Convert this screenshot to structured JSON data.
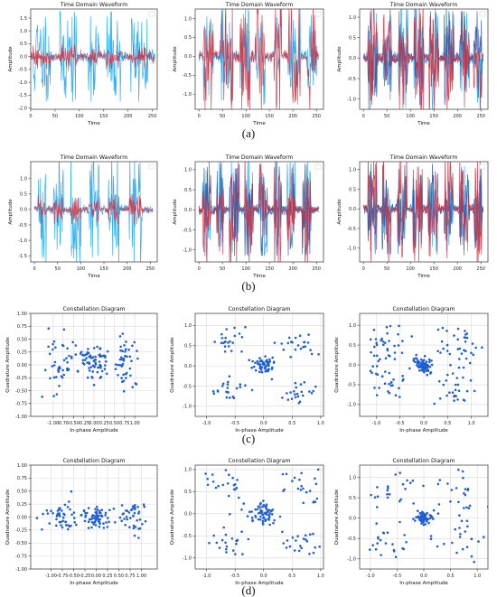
{
  "panel_labels": [
    "(a)",
    "(b)",
    "(c)",
    "(d)"
  ],
  "colors": {
    "light_blue": "#1ea7f0",
    "dark_blue": "#3355a0",
    "red": "#cc3344",
    "scatter": "#1f5fd6",
    "grid": "#d8d8d8"
  },
  "chart_data": [
    {
      "type": "line",
      "title": "Time Domain Waveform",
      "xlabel": "Time",
      "ylabel": "Amplitude",
      "xlim": [
        0,
        260
      ],
      "ylim": [
        -2.05,
        1.85
      ],
      "xticks": [
        0,
        50,
        100,
        150,
        200,
        250
      ],
      "yticks": [
        -2.0,
        -1.5,
        -1.0,
        -0.5,
        0.0,
        0.5,
        1.0,
        1.5
      ],
      "ytick_labels": [
        "-2.0",
        "-1.5",
        "-1.0",
        "-0.5",
        "0.0",
        "0.5",
        "1.0",
        "1.5"
      ],
      "bursts": [
        [
          5,
          40
        ],
        [
          60,
          95
        ],
        [
          118,
          140
        ],
        [
          155,
          185
        ],
        [
          205,
          240
        ]
      ],
      "series": [
        {
          "color_key": "light_blue",
          "n": 256,
          "low": 0.18,
          "high": 1.3,
          "seed": 11
        },
        {
          "color_key": "red",
          "n": 256,
          "low": 0.12,
          "high": 0.35,
          "seed": 12
        }
      ]
    },
    {
      "type": "line",
      "title": "Time Domain Waveform",
      "xlabel": "Time",
      "ylabel": "Amplitude",
      "xlim": [
        -8,
        265
      ],
      "ylim": [
        -1.4,
        1.25
      ],
      "xticks": [
        0,
        50,
        100,
        150,
        200,
        250
      ],
      "yticks": [
        -1.0,
        -0.5,
        0.0,
        0.5,
        1.0
      ],
      "ytick_labels": [
        "-1.0",
        "-0.5",
        "0.0",
        "0.5",
        "1.0"
      ],
      "bursts": [
        [
          10,
          30
        ],
        [
          45,
          72
        ],
        [
          88,
          108
        ],
        [
          120,
          140
        ],
        [
          160,
          175
        ],
        [
          190,
          215
        ],
        [
          230,
          250
        ]
      ],
      "series": [
        {
          "color_key": "light_blue",
          "n": 256,
          "low": 0.1,
          "high": 0.95,
          "seed": 21
        },
        {
          "color_key": "red",
          "n": 256,
          "low": 0.1,
          "high": 1.05,
          "seed": 22
        }
      ]
    },
    {
      "type": "line",
      "title": "Time Domain Waveform",
      "xlabel": "Time",
      "ylabel": "Amplitude",
      "xlim": [
        -8,
        265
      ],
      "ylim": [
        -1.25,
        1.2
      ],
      "xticks": [
        0,
        50,
        100,
        150,
        200,
        250
      ],
      "yticks": [
        -1.0,
        -0.5,
        0.0,
        0.5,
        1.0
      ],
      "ytick_labels": [
        "-1.0",
        "-0.5",
        "0.0",
        "0.5",
        "1.0"
      ],
      "bursts": [
        [
          10,
          30
        ],
        [
          42,
          60
        ],
        [
          75,
          95
        ],
        [
          108,
          128
        ],
        [
          140,
          160
        ],
        [
          172,
          192
        ],
        [
          205,
          225
        ],
        [
          235,
          252
        ]
      ],
      "series": [
        {
          "color_key": "light_blue",
          "n": 256,
          "low": 0.1,
          "high": 1.0,
          "seed": 31
        },
        {
          "color_key": "dark_blue",
          "n": 256,
          "low": 0.08,
          "high": 0.85,
          "seed": 32
        },
        {
          "color_key": "red",
          "n": 256,
          "low": 0.08,
          "high": 0.95,
          "seed": 33
        }
      ]
    },
    {
      "type": "line",
      "title": "Time Domain Waveform",
      "xlabel": "Time",
      "ylabel": "Amplitude",
      "xlim": [
        -8,
        265
      ],
      "ylim": [
        -1.7,
        1.55
      ],
      "xticks": [
        0,
        50,
        100,
        150,
        200,
        250
      ],
      "yticks": [
        -1.5,
        -1.0,
        -0.5,
        0.0,
        0.5,
        1.0
      ],
      "ytick_labels": [
        "-1.5",
        "-1.0",
        "-0.5",
        "0.0",
        "0.5",
        "1.0"
      ],
      "bursts": [
        [
          8,
          25
        ],
        [
          40,
          62
        ],
        [
          78,
          100
        ],
        [
          118,
          140
        ],
        [
          160,
          182
        ],
        [
          205,
          232
        ]
      ],
      "series": [
        {
          "color_key": "light_blue",
          "n": 256,
          "low": 0.1,
          "high": 1.35,
          "seed": 41
        },
        {
          "color_key": "red",
          "n": 256,
          "low": 0.08,
          "high": 0.35,
          "seed": 42
        }
      ]
    },
    {
      "type": "line",
      "title": "Time Domain Waveform",
      "xlabel": "Time",
      "ylabel": "Amplitude",
      "xlim": [
        -8,
        265
      ],
      "ylim": [
        -1.3,
        1.2
      ],
      "xticks": [
        0,
        50,
        100,
        150,
        200,
        250
      ],
      "yticks": [
        -1.0,
        -0.5,
        0.0,
        0.5,
        1.0
      ],
      "ytick_labels": [
        "-1.0",
        "-0.5",
        "0.0",
        "0.5",
        "1.0"
      ],
      "bursts": [
        [
          8,
          25
        ],
        [
          38,
          52
        ],
        [
          65,
          85
        ],
        [
          98,
          115
        ],
        [
          128,
          145
        ],
        [
          160,
          175
        ],
        [
          188,
          205
        ],
        [
          220,
          238
        ]
      ],
      "series": [
        {
          "color_key": "light_blue",
          "n": 256,
          "low": 0.1,
          "high": 0.95,
          "seed": 51
        },
        {
          "color_key": "dark_blue",
          "n": 256,
          "low": 0.08,
          "high": 0.85,
          "seed": 52
        },
        {
          "color_key": "red",
          "n": 256,
          "low": 0.08,
          "high": 1.05,
          "seed": 53
        }
      ]
    },
    {
      "type": "line",
      "title": "Time Domain Waveform",
      "xlabel": "Time",
      "ylabel": "Amplitude",
      "xlim": [
        -8,
        265
      ],
      "ylim": [
        -1.35,
        1.2
      ],
      "xticks": [
        0,
        50,
        100,
        150,
        200,
        250
      ],
      "yticks": [
        -1.0,
        -0.5,
        0.0,
        0.5,
        1.0
      ],
      "ytick_labels": [
        "-1.0",
        "-0.5",
        "0.0",
        "0.5",
        "1.0"
      ],
      "bursts": [
        [
          10,
          28
        ],
        [
          40,
          58
        ],
        [
          72,
          92
        ],
        [
          105,
          125
        ],
        [
          138,
          158
        ],
        [
          172,
          190
        ],
        [
          205,
          225
        ],
        [
          235,
          252
        ]
      ],
      "series": [
        {
          "color_key": "light_blue",
          "n": 256,
          "low": 0.08,
          "high": 0.8,
          "seed": 61
        },
        {
          "color_key": "dark_blue",
          "n": 256,
          "low": 0.08,
          "high": 0.85,
          "seed": 62
        },
        {
          "color_key": "red",
          "n": 256,
          "low": 0.08,
          "high": 1.05,
          "seed": 63
        }
      ]
    },
    {
      "type": "scatter",
      "title": "Constellation Diagram",
      "xlabel": "In-phase Amplitude",
      "ylabel": "Quadrature Amplitude",
      "xlim": [
        -1.55,
        1.55
      ],
      "ylim": [
        -1.0,
        1.0
      ],
      "xticks": [
        -1.0,
        -0.76,
        -0.5,
        -0.25,
        0.0,
        0.25,
        0.5,
        0.75,
        1.0
      ],
      "xtick_labels": [
        "-1.00",
        "-0.76",
        "-0.50",
        "-0.25",
        "0.00",
        "0.25",
        "0.50",
        "0.75",
        "1.00"
      ],
      "yticks": [
        -1.0,
        -0.75,
        -0.5,
        -0.25,
        0.0,
        0.25,
        0.5,
        0.75,
        1.0
      ],
      "ytick_labels": [
        "-1.00",
        "-0.75",
        "-0.50",
        "-0.25",
        "0.00",
        "0.25",
        "0.50",
        "0.75",
        "1.00"
      ],
      "clusters": [
        [
          -0.8,
          0.0,
          0.22,
          0.3,
          45
        ],
        [
          0.0,
          0.05,
          0.2,
          0.2,
          70
        ],
        [
          0.8,
          0.0,
          0.2,
          0.3,
          45
        ]
      ],
      "seed": 71
    },
    {
      "type": "scatter",
      "title": "Constellation Diagram",
      "xlabel": "In-phase Amplitude",
      "ylabel": "Quadrature Amplitude",
      "xlim": [
        -1.2,
        1.05
      ],
      "ylim": [
        -1.25,
        1.3
      ],
      "xticks": [
        -1.0,
        -0.5,
        0.0,
        0.5,
        1.0
      ],
      "xtick_labels": [
        "-1.0",
        "-0.5",
        "0.0",
        "0.5",
        "1.0"
      ],
      "yticks": [
        -1.0,
        -0.5,
        0.0,
        0.5,
        1.0
      ],
      "ytick_labels": [
        "-1.0",
        "-0.5",
        "0.0",
        "0.5",
        "1.0"
      ],
      "clusters": [
        [
          0.0,
          0.0,
          0.1,
          0.1,
          60
        ],
        [
          -0.6,
          0.6,
          0.15,
          0.15,
          22
        ],
        [
          0.6,
          0.6,
          0.15,
          0.15,
          22
        ],
        [
          -0.6,
          -0.6,
          0.15,
          0.15,
          22
        ],
        [
          0.6,
          -0.6,
          0.15,
          0.15,
          22
        ]
      ],
      "seed": 72
    },
    {
      "type": "scatter",
      "title": "Constellation Diagram",
      "xlabel": "In-phase Amplitude",
      "ylabel": "Quadrature Amplitude",
      "xlim": [
        -1.35,
        1.35
      ],
      "ylim": [
        -1.3,
        1.3
      ],
      "xticks": [
        -1.0,
        -0.5,
        0.0,
        0.5,
        1.0
      ],
      "xtick_labels": [
        "-1.0",
        "-0.5",
        "0.0",
        "0.5",
        "1.0"
      ],
      "yticks": [
        -1.0,
        -0.5,
        0.0,
        0.5,
        1.0
      ],
      "ytick_labels": [
        "-1.0",
        "-0.5",
        "0.0",
        "0.5",
        "1.0"
      ],
      "clusters": [
        [
          0.0,
          0.0,
          0.1,
          0.1,
          70
        ],
        [
          -0.7,
          0.6,
          0.25,
          0.25,
          22
        ],
        [
          0.7,
          0.6,
          0.25,
          0.25,
          22
        ],
        [
          -0.7,
          -0.6,
          0.25,
          0.25,
          22
        ],
        [
          0.7,
          -0.6,
          0.25,
          0.25,
          22
        ],
        [
          -0.9,
          0.0,
          0.12,
          0.35,
          18
        ],
        [
          0.9,
          0.0,
          0.12,
          0.35,
          18
        ]
      ],
      "seed": 73
    },
    {
      "type": "scatter",
      "title": "Constellation Diagram",
      "xlabel": "In-phase Amplitude",
      "ylabel": "Quadrature Amplitude",
      "xlim": [
        -1.45,
        1.35
      ],
      "ylim": [
        -1.0,
        1.0
      ],
      "xticks": [
        -1.0,
        -0.75,
        -0.5,
        -0.25,
        0.0,
        0.25,
        0.5,
        0.75,
        1.0
      ],
      "xtick_labels": [
        "-1.00",
        "-0.75",
        "-0.50",
        "-0.25",
        "0.00",
        "0.25",
        "0.50",
        "0.75",
        "1.00"
      ],
      "yticks": [
        -1.0,
        -0.75,
        -0.5,
        -0.25,
        0.0,
        0.25,
        0.5,
        0.75,
        1.0
      ],
      "ytick_labels": [
        "-1.00",
        "-0.75",
        "-0.50",
        "-0.25",
        "0.00",
        "0.25",
        "0.50",
        "0.75",
        "1.00"
      ],
      "clusters": [
        [
          -0.8,
          0.0,
          0.22,
          0.15,
          45
        ],
        [
          0.0,
          0.0,
          0.18,
          0.1,
          70
        ],
        [
          0.85,
          0.0,
          0.18,
          0.2,
          40
        ]
      ],
      "seed": 74
    },
    {
      "type": "scatter",
      "title": "Constellation Diagram",
      "xlabel": "In-phase Amplitude",
      "ylabel": "Quadrature Amplitude",
      "xlim": [
        -1.2,
        1.05
      ],
      "ylim": [
        -1.25,
        1.1
      ],
      "xticks": [
        -1.0,
        -0.5,
        0.0,
        0.5,
        1.0
      ],
      "xtick_labels": [
        "-1.0",
        "-0.5",
        "0.0",
        "0.5",
        "1.0"
      ],
      "yticks": [
        -1.0,
        -0.5,
        0.0,
        0.5,
        1.0
      ],
      "ytick_labels": [
        "-1.0",
        "-0.5",
        "0.0",
        "0.5",
        "1.0"
      ],
      "clusters": [
        [
          0.0,
          0.0,
          0.12,
          0.12,
          60
        ],
        [
          -0.6,
          0.6,
          0.2,
          0.2,
          22
        ],
        [
          0.6,
          0.6,
          0.2,
          0.2,
          22
        ],
        [
          -0.6,
          -0.6,
          0.2,
          0.2,
          22
        ],
        [
          0.6,
          -0.6,
          0.2,
          0.2,
          22
        ]
      ],
      "seed": 75
    },
    {
      "type": "scatter",
      "title": "Constellation Diagram",
      "xlabel": "In-phase Amplitude",
      "ylabel": "Quadrature Amplitude",
      "xlim": [
        -1.2,
        1.2
      ],
      "ylim": [
        -1.25,
        1.3
      ],
      "xticks": [
        -1.0,
        -0.5,
        0.0,
        0.5,
        1.0
      ],
      "xtick_labels": [
        "-1.0",
        "-0.5",
        "0.0",
        "0.5",
        "1.0"
      ],
      "yticks": [
        -1.0,
        -0.5,
        0.0,
        0.5,
        1.0
      ],
      "ytick_labels": [
        "-1.0",
        "-0.5",
        "0.0",
        "0.5",
        "1.0"
      ],
      "clusters": [
        [
          0.0,
          0.0,
          0.08,
          0.08,
          70
        ],
        [
          -0.6,
          0.6,
          0.25,
          0.25,
          22
        ],
        [
          0.6,
          0.6,
          0.25,
          0.25,
          22
        ],
        [
          -0.6,
          -0.6,
          0.25,
          0.25,
          22
        ],
        [
          0.6,
          -0.6,
          0.25,
          0.25,
          22
        ]
      ],
      "seed": 76
    }
  ]
}
